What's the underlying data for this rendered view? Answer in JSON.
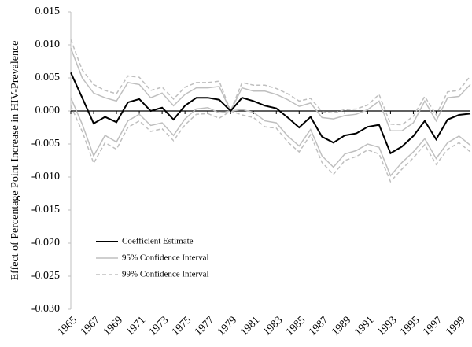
{
  "chart_data": {
    "type": "line",
    "y_label": "Effect of Percentage Point Increase in HIV-Prevalence",
    "x": [
      1965,
      1966,
      1967,
      1968,
      1969,
      1970,
      1971,
      1972,
      1973,
      1974,
      1975,
      1976,
      1977,
      1978,
      1979,
      1980,
      1981,
      1982,
      1983,
      1984,
      1985,
      1986,
      1987,
      1988,
      1989,
      1990,
      1991,
      1992,
      1993,
      1994,
      1995,
      1996,
      1997,
      1998,
      1999,
      2000
    ],
    "series": [
      {
        "name": "Coefficient Estimate",
        "color": "#000000",
        "dashed": false,
        "values": [
          0.0058,
          0.002,
          -0.0019,
          -0.0009,
          -0.0017,
          0.0013,
          0.0018,
          0.0,
          0.0005,
          -0.0013,
          0.0008,
          0.002,
          0.002,
          0.0017,
          0.0,
          0.002,
          0.0015,
          0.0008,
          0.0004,
          -0.001,
          -0.0025,
          -0.0009,
          -0.0039,
          -0.0048,
          -0.0037,
          -0.0034,
          -0.0024,
          -0.0021,
          -0.0064,
          -0.0054,
          -0.0038,
          -0.0015,
          -0.0043,
          -0.0013,
          -0.0006,
          -0.0004
        ]
      },
      {
        "name": "95% Confidence Interval",
        "color": "#bfbfbf",
        "dashed": false,
        "values": [
          0.0095,
          0.005,
          0.0027,
          0.002,
          0.0015,
          0.0043,
          0.004,
          0.002,
          0.0027,
          0.0008,
          0.0025,
          0.0035,
          0.0035,
          0.0037,
          0.0,
          0.0035,
          0.003,
          0.003,
          0.0025,
          0.0017,
          0.0007,
          0.0012,
          -0.001,
          -0.0012,
          -0.0007,
          -0.0005,
          0.0002,
          0.0015,
          -0.003,
          -0.003,
          -0.0018,
          0.0015,
          -0.0015,
          0.002,
          0.0022,
          0.004
        ]
      },
      {
        "color": "#bfbfbf",
        "dashed": false,
        "values": [
          0.002,
          -0.002,
          -0.0068,
          -0.0037,
          -0.0047,
          -0.0015,
          -0.0005,
          -0.0022,
          -0.0018,
          -0.0037,
          -0.0012,
          0.0003,
          0.0005,
          -0.0003,
          0.0,
          0.0002,
          -0.0002,
          -0.0015,
          -0.0018,
          -0.0038,
          -0.0053,
          -0.0028,
          -0.0068,
          -0.0085,
          -0.0065,
          -0.006,
          -0.005,
          -0.0055,
          -0.0098,
          -0.0078,
          -0.0062,
          -0.0042,
          -0.0072,
          -0.0048,
          -0.0038,
          -0.0052
        ]
      },
      {
        "name": "99% Confidence Interval",
        "color": "#bfbfbf",
        "dashed": true,
        "values": [
          0.0108,
          0.0062,
          0.004,
          0.0031,
          0.0026,
          0.0053,
          0.0051,
          0.0031,
          0.0036,
          0.0018,
          0.0036,
          0.0043,
          0.0043,
          0.0045,
          0.0,
          0.0043,
          0.0039,
          0.0039,
          0.0034,
          0.0026,
          0.0015,
          0.0019,
          -0.0001,
          -0.0003,
          0.0002,
          0.0003,
          0.0009,
          0.0025,
          -0.002,
          -0.0021,
          -0.0008,
          0.0022,
          -0.0006,
          0.0029,
          0.0031,
          0.0053
        ]
      },
      {
        "color": "#bfbfbf",
        "dashed": true,
        "values": [
          0.0008,
          -0.0031,
          -0.0079,
          -0.0048,
          -0.0058,
          -0.0025,
          -0.0015,
          -0.0031,
          -0.0027,
          -0.0045,
          -0.0021,
          -0.0005,
          -0.0004,
          -0.0011,
          0.0,
          -0.0006,
          -0.001,
          -0.0024,
          -0.0026,
          -0.0047,
          -0.0062,
          -0.0036,
          -0.0078,
          -0.0096,
          -0.0075,
          -0.0069,
          -0.0059,
          -0.0065,
          -0.0107,
          -0.0088,
          -0.0071,
          -0.0051,
          -0.0081,
          -0.0058,
          -0.0048,
          -0.0062
        ]
      }
    ],
    "xlim": [
      1965,
      2000
    ],
    "xticks": [
      1965,
      1967,
      1969,
      1971,
      1973,
      1975,
      1977,
      1979,
      1981,
      1983,
      1985,
      1987,
      1989,
      1991,
      1993,
      1995,
      1997,
      1999
    ],
    "ylim": [
      -0.03,
      0.015
    ],
    "yticks": [
      0.015,
      {
        "value": 0.01,
        "label": "0.010"
      },
      0.005,
      {
        "value": 0,
        "label": "0.000"
      },
      -0.005,
      {
        "value": -0.01,
        "label": "-0.010"
      },
      -0.015,
      {
        "value": -0.02,
        "label": "-0.020"
      },
      -0.025,
      {
        "value": -0.03,
        "label": "-0.030"
      }
    ],
    "legend": "bottom-left"
  }
}
